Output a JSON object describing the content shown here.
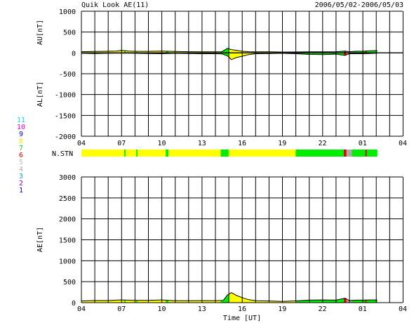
{
  "header": {
    "title": "Quik Look AE(11)",
    "date_range": "2006/05/02-2006/05/03"
  },
  "colors": {
    "yellow": "#ffff00",
    "green": "#00ee00",
    "red": "#dd0000",
    "gray": "#aaaaaa",
    "grid": "#000000"
  },
  "station_legend": [
    {
      "label": "11",
      "color": "#00dddd"
    },
    {
      "label": "10",
      "color": "#dd00dd"
    },
    {
      "label": "9",
      "color": "#0000cc"
    },
    {
      "label": "8",
      "color": "#eeee00"
    },
    {
      "label": "7",
      "color": "#00dd00"
    },
    {
      "label": "6",
      "color": "#dd0000"
    },
    {
      "label": "5",
      "color": "#bbbbbb"
    },
    {
      "label": "4",
      "color": "#aaaaaa"
    },
    {
      "label": "3",
      "color": "#00aaaa"
    },
    {
      "label": "2",
      "color": "#aa00aa"
    },
    {
      "label": "1",
      "color": "#0000aa"
    }
  ],
  "x_axis": {
    "xlabel": "Time [UT]",
    "range": [
      4,
      28
    ],
    "tick_labels": [
      "04",
      "07",
      "10",
      "13",
      "16",
      "19",
      "22",
      "01",
      "04"
    ]
  },
  "nstn": {
    "label": "N.STN",
    "segments": [
      {
        "start": 4.0,
        "end": 7.2,
        "color": "yellow"
      },
      {
        "start": 7.2,
        "end": 7.3,
        "color": "green"
      },
      {
        "start": 7.3,
        "end": 8.1,
        "color": "yellow"
      },
      {
        "start": 8.1,
        "end": 8.2,
        "color": "green"
      },
      {
        "start": 8.2,
        "end": 10.3,
        "color": "yellow"
      },
      {
        "start": 10.3,
        "end": 10.5,
        "color": "green"
      },
      {
        "start": 10.5,
        "end": 14.4,
        "color": "yellow"
      },
      {
        "start": 14.4,
        "end": 15.0,
        "color": "green"
      },
      {
        "start": 15.0,
        "end": 20.0,
        "color": "yellow"
      },
      {
        "start": 20.0,
        "end": 23.6,
        "color": "green"
      },
      {
        "start": 23.6,
        "end": 23.8,
        "color": "red"
      },
      {
        "start": 23.8,
        "end": 24.2,
        "color": "gray"
      },
      {
        "start": 24.2,
        "end": 25.2,
        "color": "green"
      },
      {
        "start": 25.2,
        "end": 25.3,
        "color": "red"
      },
      {
        "start": 25.3,
        "end": 26.1,
        "color": "green"
      }
    ]
  },
  "chart_data": [
    {
      "type": "area",
      "ylabel_top": "AU[nT]",
      "ylabel_bottom": "AL[nT]",
      "ylim": [
        -2000,
        1000
      ],
      "yticks": [
        1000,
        500,
        0,
        -500,
        -1000,
        -1500,
        -2000
      ],
      "x_ticks": [
        4,
        7,
        10,
        13,
        16,
        19,
        22,
        25,
        28
      ],
      "grid": true,
      "series": [
        {
          "x": [
            4,
            5,
            6,
            6.6,
            7,
            7.5,
            8,
            9,
            10,
            10.5,
            11,
            12,
            13,
            14,
            14.5,
            14.9,
            15.2,
            15.6,
            16,
            16.5,
            17,
            18,
            19,
            20,
            21,
            22,
            23,
            23.7,
            24,
            24.5,
            25,
            25.5,
            26,
            26.1
          ],
          "values": [
            30,
            35,
            40,
            45,
            60,
            45,
            40,
            38,
            45,
            40,
            35,
            30,
            28,
            25,
            30,
            110,
            80,
            60,
            40,
            30,
            25,
            25,
            20,
            22,
            25,
            25,
            30,
            45,
            30,
            40,
            40,
            50,
            55,
            55
          ]
        },
        {
          "x": [
            4,
            5,
            6,
            7,
            8,
            9,
            10,
            11,
            12,
            13,
            14,
            14.5,
            14.9,
            15.2,
            15.6,
            16,
            16.5,
            17,
            18,
            19,
            20,
            21,
            22,
            23,
            23.7,
            24,
            24.5,
            25,
            25.5,
            26,
            26.1
          ],
          "values": [
            -10,
            -15,
            -10,
            -5,
            -10,
            -15,
            -20,
            -10,
            -15,
            -20,
            -20,
            -25,
            -70,
            -160,
            -110,
            -80,
            -40,
            -20,
            -15,
            -10,
            -20,
            -35,
            -40,
            -30,
            -60,
            -20,
            -20,
            -20,
            -15,
            -10,
            -10
          ]
        }
      ]
    },
    {
      "type": "area",
      "ylabel": "AE[nT]",
      "ylim": [
        0,
        3000
      ],
      "yticks": [
        3000,
        2500,
        2000,
        1500,
        1000,
        500,
        0
      ],
      "x_ticks": [
        4,
        7,
        10,
        13,
        16,
        19,
        22,
        25,
        28
      ],
      "grid": true,
      "series": [
        {
          "x": [
            4,
            5,
            6,
            6.6,
            7,
            8,
            9,
            10,
            10.5,
            11,
            12,
            13,
            14,
            14.6,
            14.9,
            15.2,
            15.6,
            16,
            16.5,
            17,
            18,
            19,
            20,
            21,
            22,
            23,
            23.7,
            24,
            24.5,
            25,
            25.5,
            26,
            26.1
          ],
          "values": [
            40,
            50,
            50,
            60,
            65,
            55,
            55,
            65,
            55,
            45,
            45,
            48,
            45,
            55,
            180,
            240,
            170,
            120,
            70,
            45,
            40,
            30,
            42,
            60,
            65,
            60,
            105,
            50,
            60,
            60,
            65,
            65,
            65
          ]
        }
      ]
    }
  ]
}
